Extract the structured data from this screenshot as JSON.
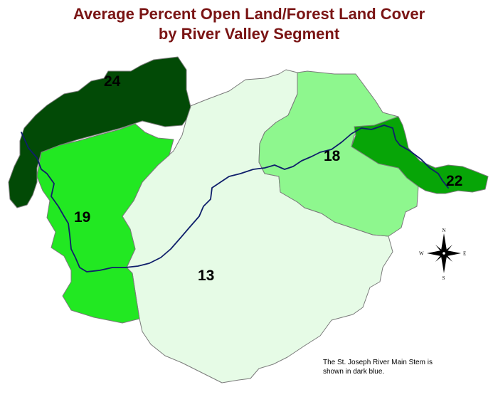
{
  "title": {
    "line1": "Average Percent Open Land/Forest Land Cover",
    "line2": "by River Valley Segment"
  },
  "segments": [
    {
      "id": "24",
      "label": "24",
      "fill": "#024a06"
    },
    {
      "id": "19",
      "label": "19",
      "fill": "#22e822"
    },
    {
      "id": "13",
      "label": "13",
      "fill": "#e6fbe6"
    },
    {
      "id": "18",
      "label": "18",
      "fill": "#8ef78e"
    },
    {
      "id": "22",
      "label": "22",
      "fill": "#07a507"
    }
  ],
  "river": {
    "color": "#0f1f6b"
  },
  "compass": {
    "n": "N",
    "s": "S",
    "e": "E",
    "w": "W"
  },
  "note": {
    "line1": "The St. Joseph River Main Stem is",
    "line2": "shown in dark blue."
  }
}
